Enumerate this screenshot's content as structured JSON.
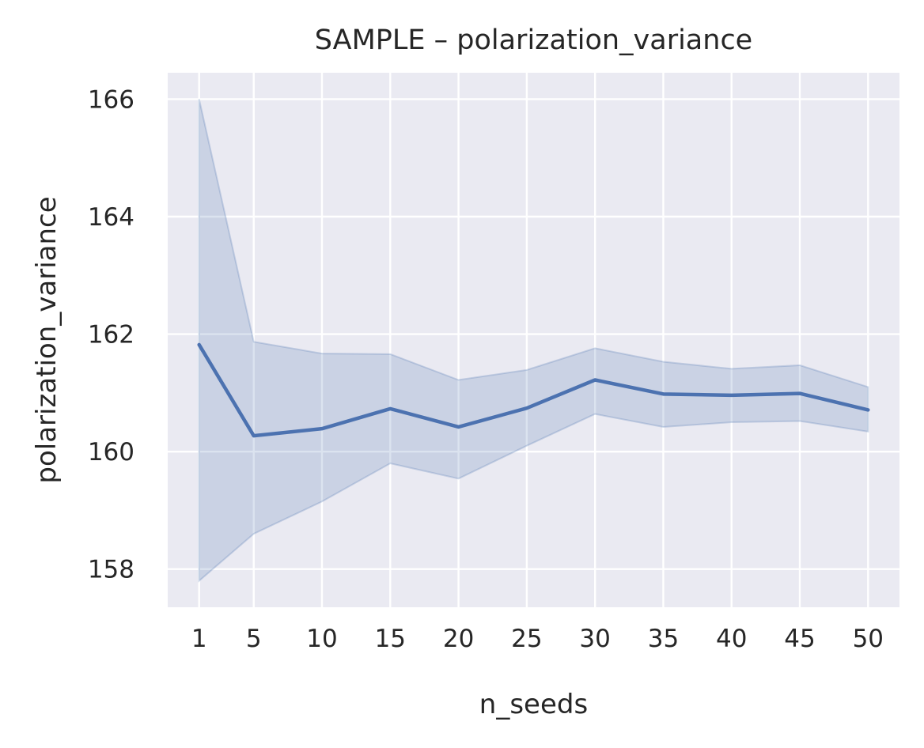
{
  "chart_data": {
    "type": "line",
    "title": "SAMPLE – polarization_variance",
    "xlabel": "n_seeds",
    "ylabel": "polarization_variance",
    "x": [
      1,
      5,
      10,
      15,
      20,
      25,
      30,
      35,
      40,
      45,
      50
    ],
    "xticks": [
      1,
      5,
      10,
      15,
      20,
      25,
      30,
      35,
      40,
      45,
      50
    ],
    "yticks": [
      158,
      160,
      162,
      164,
      166
    ],
    "xlim": [
      -1.3,
      52.3
    ],
    "ylim": [
      157.35,
      166.45
    ],
    "grid": true,
    "series": [
      {
        "values": [
          161.82,
          160.27,
          160.39,
          160.73,
          160.42,
          160.74,
          161.22,
          160.98,
          160.96,
          160.99,
          160.71
        ],
        "ci_upper": [
          166.0,
          161.87,
          161.67,
          161.66,
          161.22,
          161.39,
          161.76,
          161.53,
          161.41,
          161.47,
          161.1
        ],
        "ci_lower": [
          157.8,
          158.6,
          159.15,
          159.8,
          159.54,
          160.1,
          160.64,
          160.42,
          160.5,
          160.52,
          160.34
        ]
      }
    ],
    "colors": {
      "line": "#4c72b0",
      "band": "#4c72b0",
      "plot_bg": "#eaeaf2",
      "grid": "#ffffff",
      "text": "#262626"
    }
  }
}
